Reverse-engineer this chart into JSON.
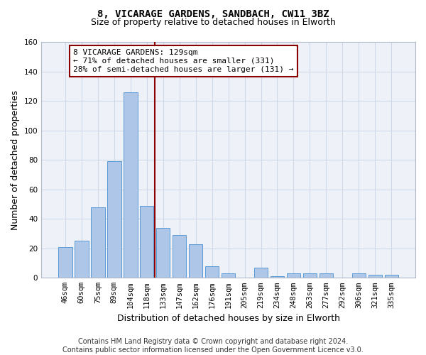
{
  "title": "8, VICARAGE GARDENS, SANDBACH, CW11 3BZ",
  "subtitle": "Size of property relative to detached houses in Elworth",
  "xlabel": "Distribution of detached houses by size in Elworth",
  "ylabel": "Number of detached properties",
  "categories": [
    "46sqm",
    "60sqm",
    "75sqm",
    "89sqm",
    "104sqm",
    "118sqm",
    "133sqm",
    "147sqm",
    "162sqm",
    "176sqm",
    "191sqm",
    "205sqm",
    "219sqm",
    "234sqm",
    "248sqm",
    "263sqm",
    "277sqm",
    "292sqm",
    "306sqm",
    "321sqm",
    "335sqm"
  ],
  "values": [
    21,
    25,
    48,
    79,
    126,
    49,
    34,
    29,
    23,
    8,
    3,
    0,
    7,
    1,
    3,
    3,
    3,
    0,
    3,
    2,
    2
  ],
  "bar_color": "#aec6e8",
  "bar_edge_color": "#5b9bd5",
  "vline_x": 5.5,
  "vline_color": "#8b0000",
  "annotation_lines": [
    "8 VICARAGE GARDENS: 129sqm",
    "← 71% of detached houses are smaller (331)",
    "28% of semi-detached houses are larger (131) →"
  ],
  "annotation_box_color": "#ffffff",
  "annotation_box_edge": "#8b0000",
  "ylim": [
    0,
    160
  ],
  "yticks": [
    0,
    20,
    40,
    60,
    80,
    100,
    120,
    140,
    160
  ],
  "grid_color": "#d0d8e8",
  "bg_color": "#eef2f8",
  "footer": "Contains HM Land Registry data © Crown copyright and database right 2024.\nContains public sector information licensed under the Open Government Licence v3.0.",
  "title_fontsize": 10,
  "subtitle_fontsize": 9,
  "xlabel_fontsize": 9,
  "ylabel_fontsize": 9,
  "tick_fontsize": 7.5,
  "footer_fontsize": 7,
  "ann_fontsize": 8
}
